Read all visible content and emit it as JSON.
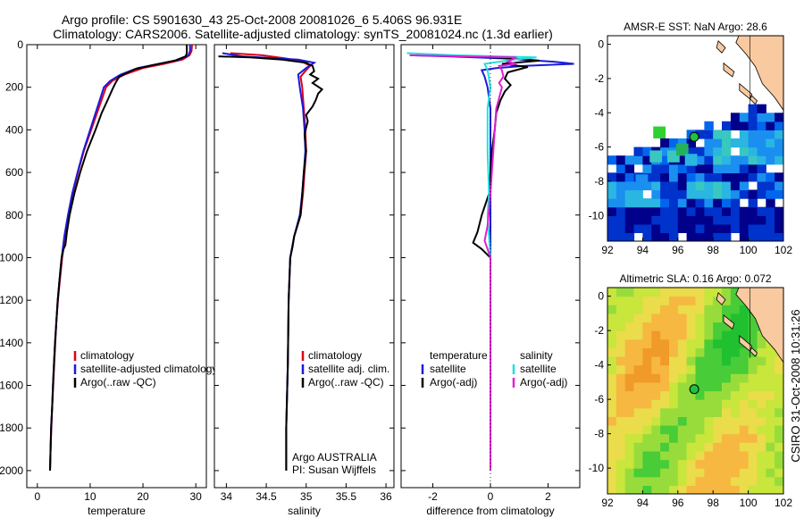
{
  "header": {
    "line1": "Argo profile: CS 5901630_43 25-Oct-2008 20081026_6 5.406S 96.931E",
    "line2": "Climatology: CARS2006. Satellite-adjusted climatology: synTS_20081024.nc (1.3d earlier)"
  },
  "side_label": "CSIRO 31-Oct-2008 10:31:26",
  "chart_data": [
    {
      "id": "temperature",
      "type": "line",
      "xlabel": "temperature",
      "xlim": [
        -2,
        32
      ],
      "xticks": [
        0,
        10,
        20,
        30
      ],
      "ylim": [
        0,
        2080
      ],
      "yticks": [
        0,
        200,
        400,
        600,
        800,
        1000,
        1200,
        1400,
        1600,
        1800,
        2000
      ],
      "legend": [
        "climatology",
        "satellite-adjusted climatology",
        "Argo(..raw -QC)"
      ],
      "series": [
        {
          "name": "climatology",
          "color": "#e0001b",
          "points": [
            [
              29.3,
              0
            ],
            [
              29.2,
              30
            ],
            [
              28.8,
              50
            ],
            [
              27.5,
              70
            ],
            [
              24,
              90
            ],
            [
              20,
              110
            ],
            [
              16.5,
              140
            ],
            [
              14.2,
              170
            ],
            [
              13,
              200
            ],
            [
              11.6,
              300
            ],
            [
              10.2,
              400
            ],
            [
              8.8,
              500
            ],
            [
              7.7,
              600
            ],
            [
              6.7,
              700
            ],
            [
              5.9,
              800
            ],
            [
              5.2,
              900
            ],
            [
              4.7,
              1000
            ],
            [
              4.3,
              1100
            ],
            [
              3.9,
              1200
            ],
            [
              3.6,
              1300
            ],
            [
              3.4,
              1400
            ],
            [
              3.2,
              1500
            ],
            [
              3,
              1600
            ],
            [
              2.8,
              1700
            ],
            [
              2.65,
              1800
            ],
            [
              2.5,
              1900
            ],
            [
              2.4,
              2000
            ]
          ]
        },
        {
          "name": "satellite-adjusted climatology",
          "color": "#1a1adc",
          "points": [
            [
              28.9,
              0
            ],
            [
              28.9,
              30
            ],
            [
              28.6,
              50
            ],
            [
              27,
              70
            ],
            [
              23,
              90
            ],
            [
              19,
              110
            ],
            [
              15.8,
              140
            ],
            [
              13.8,
              170
            ],
            [
              12.6,
              200
            ],
            [
              11.3,
              300
            ],
            [
              10,
              400
            ],
            [
              8.7,
              500
            ],
            [
              7.6,
              600
            ],
            [
              6.6,
              700
            ],
            [
              5.8,
              800
            ],
            [
              5.1,
              900
            ],
            [
              4.6,
              1000
            ],
            [
              4.2,
              1100
            ],
            [
              3.85,
              1200
            ],
            [
              3.6,
              1300
            ],
            [
              3.35,
              1400
            ],
            [
              3.15,
              1500
            ],
            [
              2.95,
              1600
            ],
            [
              2.8,
              1700
            ],
            [
              2.6,
              1800
            ],
            [
              2.5,
              1900
            ],
            [
              2.4,
              2000
            ]
          ]
        },
        {
          "name": "Argo(..raw -QC)",
          "color": "#000000",
          "points": [
            [
              28.3,
              0
            ],
            [
              28.3,
              40
            ],
            [
              28.1,
              55
            ],
            [
              26,
              75
            ],
            [
              22,
              95
            ],
            [
              18.5,
              115
            ],
            [
              15.5,
              150
            ],
            [
              14.8,
              180
            ],
            [
              14.2,
              210
            ],
            [
              13.3,
              260
            ],
            [
              12.2,
              320
            ],
            [
              11,
              400
            ],
            [
              9.4,
              500
            ],
            [
              8.1,
              600
            ],
            [
              7,
              700
            ],
            [
              6.1,
              800
            ],
            [
              5.6,
              880
            ],
            [
              5.3,
              940
            ],
            [
              4.95,
              960
            ],
            [
              4.6,
              1000
            ],
            [
              4.2,
              1100
            ],
            [
              3.85,
              1200
            ],
            [
              3.6,
              1300
            ],
            [
              3.35,
              1400
            ],
            [
              3.15,
              1500
            ],
            [
              2.95,
              1600
            ],
            [
              2.8,
              1700
            ],
            [
              2.6,
              1800
            ],
            [
              2.5,
              1900
            ],
            [
              2.4,
              2000
            ]
          ]
        }
      ]
    },
    {
      "id": "salinity",
      "type": "line",
      "xlabel": "salinity",
      "xlim": [
        33.85,
        36.1
      ],
      "xticks": [
        34,
        34.5,
        35,
        35.5,
        36
      ],
      "xtick_labels": [
        "34",
        "34.5",
        "35",
        "35.5",
        "36"
      ],
      "ylim": [
        0,
        2080
      ],
      "legend": [
        "climatology",
        "satellite adj. clim.",
        "Argo(..raw -QC)"
      ],
      "annotation": [
        "Argo AUSTRALIA",
        "PI: Susan Wijffels"
      ],
      "series": [
        {
          "name": "climatology",
          "color": "#e0001b",
          "points": [
            [
              34.05,
              40
            ],
            [
              34.45,
              50
            ],
            [
              34.75,
              65
            ],
            [
              34.95,
              80
            ],
            [
              35.05,
              100
            ],
            [
              35.0,
              120
            ],
            [
              34.93,
              150
            ],
            [
              34.95,
              200
            ],
            [
              34.97,
              300
            ],
            [
              34.99,
              400
            ],
            [
              35.0,
              500
            ],
            [
              34.98,
              600
            ],
            [
              34.96,
              700
            ],
            [
              34.93,
              800
            ],
            [
              34.85,
              900
            ],
            [
              34.8,
              1000
            ],
            [
              34.78,
              1200
            ],
            [
              34.77,
              1500
            ],
            [
              34.75,
              1800
            ],
            [
              34.75,
              2000
            ]
          ]
        },
        {
          "name": "satellite adj. clim.",
          "color": "#1a1adc",
          "points": [
            [
              33.95,
              40
            ],
            [
              34.2,
              55
            ],
            [
              34.9,
              70
            ],
            [
              35.1,
              85
            ],
            [
              35.0,
              110
            ],
            [
              34.9,
              140
            ],
            [
              34.92,
              200
            ],
            [
              34.96,
              300
            ],
            [
              34.98,
              400
            ],
            [
              34.99,
              500
            ],
            [
              34.97,
              600
            ],
            [
              34.95,
              700
            ],
            [
              34.92,
              800
            ],
            [
              34.85,
              900
            ],
            [
              34.8,
              1000
            ],
            [
              34.78,
              1200
            ],
            [
              34.77,
              1500
            ],
            [
              34.75,
              1800
            ],
            [
              34.75,
              2000
            ]
          ]
        },
        {
          "name": "Argo(..raw -QC)",
          "color": "#000000",
          "points": [
            [
              33.9,
              55
            ],
            [
              34.3,
              60
            ],
            [
              34.7,
              70
            ],
            [
              35.0,
              85
            ],
            [
              35.08,
              100
            ],
            [
              35.1,
              125
            ],
            [
              35.05,
              140
            ],
            [
              35.15,
              160
            ],
            [
              35.08,
              180
            ],
            [
              35.2,
              210
            ],
            [
              35.15,
              230
            ],
            [
              35.12,
              260
            ],
            [
              35.08,
              290
            ],
            [
              35.0,
              330
            ],
            [
              35.02,
              360
            ],
            [
              34.98,
              420
            ],
            [
              35.0,
              500
            ],
            [
              34.97,
              600
            ],
            [
              34.95,
              700
            ],
            [
              34.93,
              800
            ],
            [
              34.85,
              900
            ],
            [
              34.83,
              950
            ],
            [
              34.8,
              1000
            ],
            [
              34.78,
              1200
            ],
            [
              34.77,
              1500
            ],
            [
              34.75,
              1800
            ],
            [
              34.75,
              2000
            ]
          ]
        }
      ]
    },
    {
      "id": "difference",
      "type": "line",
      "xlabel": "difference from climatology",
      "xlim": [
        -3.1,
        3.1
      ],
      "xticks": [
        -2,
        0,
        2
      ],
      "ylim": [
        0,
        2080
      ],
      "legend_left": [
        "temperature",
        "satellite",
        "Argo(-adj)"
      ],
      "legend_right": [
        "salinity",
        "satellite",
        "Argo(-adj)"
      ],
      "series": [
        {
          "name": "satellite (temperature)",
          "color": "#1a1adc",
          "points": [
            [
              -2.8,
              50
            ],
            [
              -1.5,
              55
            ],
            [
              0.5,
              65
            ],
            [
              2.2,
              80
            ],
            [
              2.9,
              90
            ],
            [
              1.2,
              100
            ],
            [
              0.2,
              110
            ],
            [
              -0.3,
              120
            ],
            [
              -0.2,
              150
            ],
            [
              -0.1,
              200
            ],
            [
              0,
              300
            ],
            [
              0,
              400
            ],
            [
              0,
              600
            ],
            [
              0,
              800
            ],
            [
              0,
              1000
            ],
            [
              0,
              1500
            ],
            [
              0,
              2000
            ]
          ]
        },
        {
          "name": "Argo(-adj) (temperature)",
          "color": "#000000",
          "points": [
            [
              -0.6,
              55
            ],
            [
              0.8,
              65
            ],
            [
              1.7,
              75
            ],
            [
              0.4,
              90
            ],
            [
              1.3,
              105
            ],
            [
              0.6,
              130
            ],
            [
              0.5,
              160
            ],
            [
              0.7,
              190
            ],
            [
              0.5,
              220
            ],
            [
              0.35,
              260
            ],
            [
              0.2,
              320
            ],
            [
              0.15,
              400
            ],
            [
              0.05,
              500
            ],
            [
              0,
              600
            ],
            [
              -0.05,
              700
            ],
            [
              -0.3,
              800
            ],
            [
              -0.45,
              880
            ],
            [
              -0.6,
              930
            ],
            [
              -0.3,
              960
            ],
            [
              0,
              1000
            ],
            [
              0,
              1500
            ],
            [
              0,
              2000
            ]
          ]
        },
        {
          "name": "satellite (salinity)",
          "color": "#20e0e0",
          "points": [
            [
              -2.9,
              40
            ],
            [
              -1.2,
              50
            ],
            [
              1.6,
              60
            ],
            [
              0.8,
              70
            ],
            [
              -0.2,
              90
            ],
            [
              -0.1,
              120
            ],
            [
              0,
              200
            ],
            [
              -0.1,
              300
            ],
            [
              -0.1,
              500
            ],
            [
              -0.05,
              700
            ],
            [
              -0.1,
              800
            ],
            [
              -0.05,
              900
            ],
            [
              0,
              1000
            ],
            [
              0,
              1500
            ],
            [
              0,
              2000
            ]
          ]
        },
        {
          "name": "Argo(-adj) (salinity)",
          "color": "#e020d0",
          "points": [
            [
              -2.8,
              50
            ],
            [
              0.9,
              60
            ],
            [
              0.6,
              80
            ],
            [
              0.9,
              90
            ],
            [
              0.3,
              100
            ],
            [
              0.4,
              120
            ],
            [
              0.45,
              150
            ],
            [
              0.3,
              180
            ],
            [
              0.4,
              200
            ],
            [
              0.2,
              300
            ],
            [
              0.1,
              500
            ],
            [
              0.05,
              600
            ],
            [
              0,
              700
            ],
            [
              -0.1,
              850
            ],
            [
              -0.2,
              920
            ],
            [
              -0.05,
              980
            ],
            [
              0,
              1000
            ],
            [
              0,
              1500
            ],
            [
              0,
              2000
            ]
          ]
        }
      ]
    },
    {
      "id": "sst_map",
      "type": "heatmap",
      "title": "AMSR-E SST: NaN Argo: 28.6",
      "xlim": [
        92,
        102
      ],
      "ylim": [
        -11.5,
        0.5
      ],
      "xticks": [
        92,
        94,
        96,
        98,
        100,
        102
      ],
      "yticks": [
        0,
        -2,
        -4,
        -6,
        -8,
        -10
      ],
      "argo_position": [
        96.93,
        -5.41
      ],
      "colors": [
        "#00008b",
        "#0033cc",
        "#0066ee",
        "#1a8ff0",
        "#2ab6e0",
        "#38c8c0",
        "#25b060",
        "#30d030"
      ]
    },
    {
      "id": "sla_map",
      "type": "heatmap",
      "title": "Altimetric SLA: 0.16 Argo: 0.072",
      "xlim": [
        92,
        102
      ],
      "ylim": [
        -11.5,
        0.5
      ],
      "xticks": [
        92,
        94,
        96,
        98,
        100,
        102
      ],
      "yticks": [
        0,
        -2,
        -4,
        -6,
        -8,
        -10
      ],
      "argo_position": [
        96.93,
        -5.41
      ],
      "colors": [
        "#f09a2a",
        "#f6b840",
        "#eadc4a",
        "#c8e63c",
        "#98dc3c",
        "#48cc38",
        "#20c030"
      ]
    }
  ]
}
